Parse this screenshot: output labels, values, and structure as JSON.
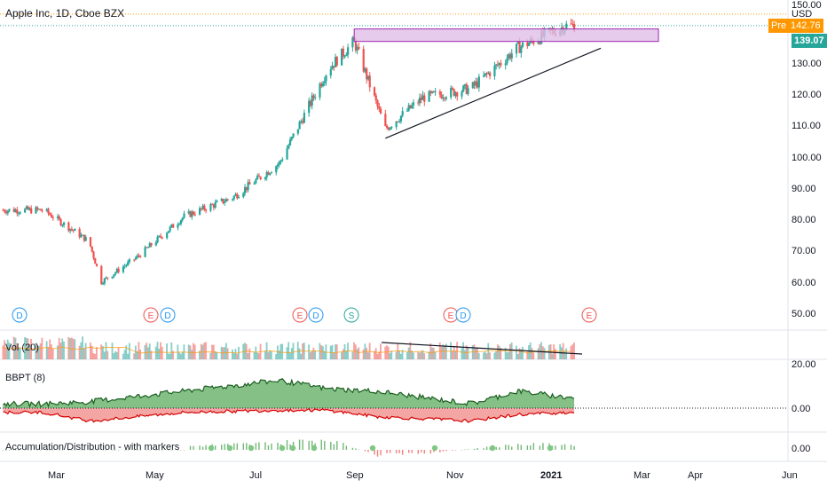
{
  "header": {
    "title": "Apple Inc, 1D, Cboe BZX"
  },
  "currency": "USD",
  "price_axis": {
    "ticks": [
      "150.00",
      "140.00",
      "130.00",
      "120.00",
      "110.00",
      "100.00",
      "90.00",
      "80.00",
      "70.00",
      "60.00",
      "50.00"
    ]
  },
  "last_price": {
    "label": "139.07",
    "color": "#26a69a"
  },
  "pre_market": {
    "label": "Pre",
    "value": "142.76",
    "color": "#ff9800"
  },
  "time_axis": {
    "labels": [
      "Mar",
      "May",
      "Jul",
      "Sep",
      "Nov",
      "2021",
      "Mar",
      "Apr",
      "Jun"
    ]
  },
  "event_markers": [
    "D",
    "E",
    "D",
    "E",
    "D",
    "S",
    "E",
    "D",
    "E"
  ],
  "panels": {
    "volume": {
      "label": "Vol (20)"
    },
    "bbpt": {
      "label": "BBPT (8)",
      "ticks": [
        "20.00",
        "0.00"
      ]
    },
    "ad": {
      "label": "Accumulation/Distribution - with markers",
      "ticks": [
        "0.00"
      ]
    }
  },
  "colors": {
    "up": "#26a69a",
    "down": "#ef5350",
    "zone": "#e1bee7",
    "zone_border": "#9c27b0",
    "bull_fill": "#43a047",
    "bear_fill": "#e53935"
  },
  "chart_data": [
    {
      "type": "candlestick",
      "title": "Apple Inc, 1D, Cboe BZX",
      "x": [
        "2020-02",
        "2020-03",
        "2020-03-23",
        "2020-04",
        "2020-05",
        "2020-06",
        "2020-07",
        "2020-08",
        "2020-09-01",
        "2020-09-21",
        "2020-10",
        "2020-11",
        "2020-12",
        "2021-01"
      ],
      "close": [
        80,
        70,
        57,
        65,
        78,
        84,
        95,
        125,
        134,
        106,
        116,
        119,
        132,
        139.07
      ],
      "ylim": [
        45,
        155
      ],
      "annotations": [
        {
          "type": "zone",
          "from_date": "2020-09-01",
          "to_date": "2021-03",
          "y_low": 134,
          "y_high": 138
        },
        {
          "type": "trendline",
          "points": [
            [
              "2020-09-21",
              103
            ],
            [
              "2021-01-20",
              131
            ]
          ]
        }
      ]
    },
    {
      "type": "bar",
      "title": "Vol (20)",
      "x": [
        "2020-02",
        "2020-03",
        "2020-05",
        "2020-07",
        "2020-09",
        "2020-11",
        "2021-01"
      ],
      "values": [
        200,
        230,
        150,
        170,
        180,
        140,
        120
      ]
    },
    {
      "type": "area",
      "title": "BBPT (8)",
      "x": [
        "2020-02",
        "2020-03",
        "2020-05",
        "2020-07",
        "2020-08",
        "2020-09",
        "2020-11",
        "2020-12",
        "2021-01"
      ],
      "bull_power": [
        2,
        3,
        8,
        13,
        9,
        8,
        2,
        8,
        5
      ],
      "bear_power": [
        -2,
        -6,
        -2,
        -1,
        -1,
        -4,
        -6,
        -3,
        -2
      ],
      "ylim": [
        -10,
        25
      ]
    },
    {
      "type": "bar",
      "title": "Accumulation/Distribution - with markers",
      "x": [
        "2020-05",
        "2020-07",
        "2020-08",
        "2020-09",
        "2020-10",
        "2020-12"
      ],
      "values": [
        0.2,
        0.4,
        0.6,
        -0.3,
        -0.2,
        0.3
      ]
    }
  ]
}
